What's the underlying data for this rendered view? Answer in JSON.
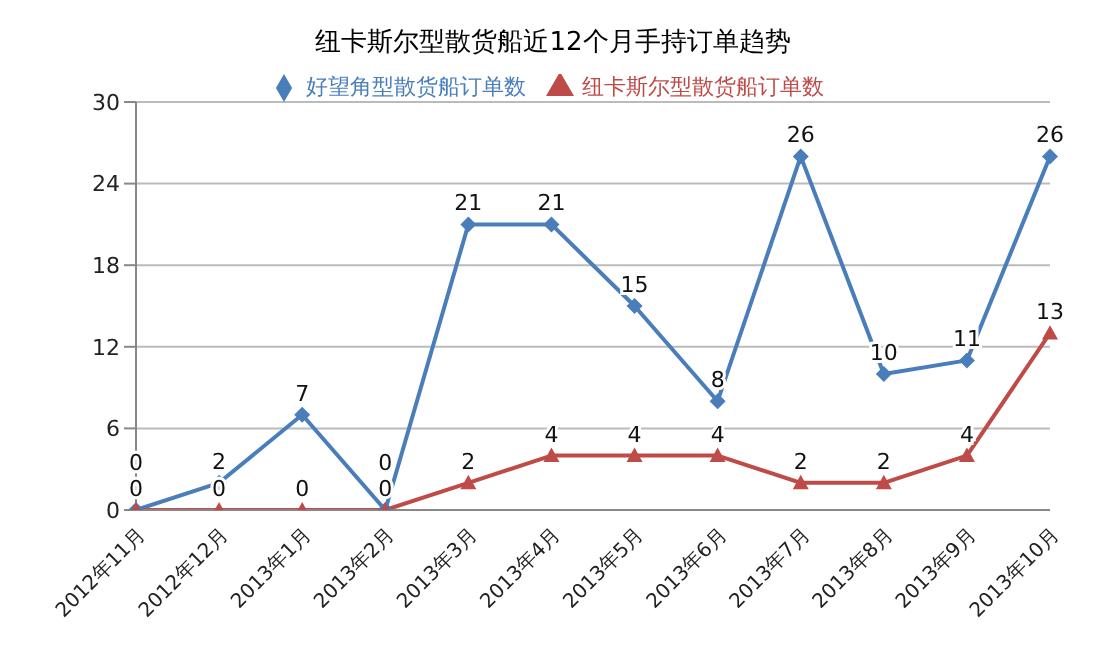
{
  "chart_data": {
    "type": "line",
    "title": "纽卡斯尔型散货船近12个月手持订单趋势",
    "categories": [
      "2012年11月",
      "2012年12月",
      "2013年1月",
      "2013年2月",
      "2013年3月",
      "2013年4月",
      "2013年5月",
      "2013年6月",
      "2013年7月",
      "2013年8月",
      "2013年9月",
      "2013年10月"
    ],
    "series": [
      {
        "name": "好望角型散货船订单数",
        "color": "#4a7ebb",
        "marker": "diamond",
        "values": [
          0,
          2,
          7,
          0,
          21,
          21,
          15,
          8,
          26,
          10,
          11,
          26
        ]
      },
      {
        "name": "纽卡斯尔型散货船订单数",
        "color": "#be4b48",
        "marker": "triangle",
        "values": [
          0,
          0,
          0,
          0,
          2,
          4,
          4,
          4,
          2,
          2,
          4,
          13
        ]
      }
    ],
    "ylim": [
      0,
      30
    ],
    "yticks": [
      0,
      6,
      12,
      18,
      24,
      30
    ],
    "grid": "y",
    "legend": "top",
    "data_labels": true
  }
}
